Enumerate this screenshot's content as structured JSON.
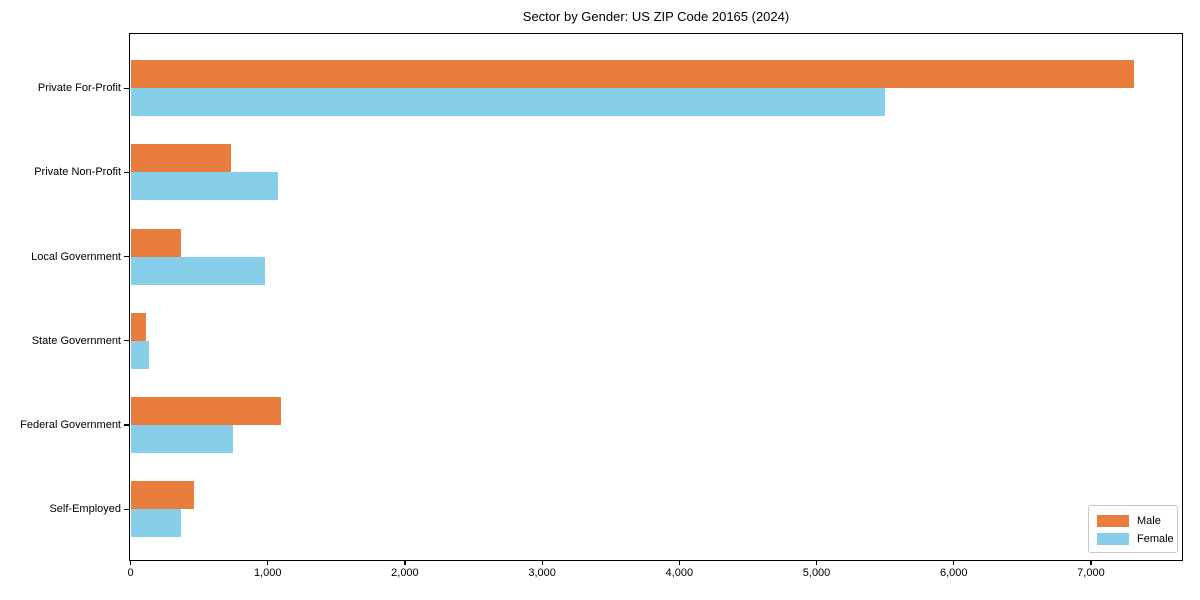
{
  "colors": {
    "male": "#e87d3e",
    "female": "#87ceeb",
    "axis": "#000000",
    "text": "#000000",
    "legend_border": "#c8c8c8",
    "background": "#ffffff"
  },
  "legend": {
    "items": [
      {
        "label": "Male",
        "key": "male"
      },
      {
        "label": "Female",
        "key": "female"
      }
    ]
  },
  "chart_data": {
    "type": "bar",
    "orientation": "horizontal",
    "title": "Sector by Gender: US ZIP Code 20165 (2024)",
    "categories": [
      "Private For-Profit",
      "Private Non-Profit",
      "Local Government",
      "State Government",
      "Federal Government",
      "Self-Employed"
    ],
    "series": [
      {
        "name": "Male",
        "color_key": "male",
        "values": [
          7315,
          730,
          370,
          115,
          1100,
          465
        ]
      },
      {
        "name": "Female",
        "color_key": "female",
        "values": [
          5500,
          1075,
          980,
          135,
          745,
          365
        ]
      }
    ],
    "xlabel": "",
    "ylabel": "",
    "xlim": [
      0,
      7660
    ],
    "x_ticks": [
      0,
      1000,
      2000,
      3000,
      4000,
      5000,
      6000,
      7000
    ],
    "x_tick_labels": [
      "0",
      "1,000",
      "2,000",
      "3,000",
      "4,000",
      "5,000",
      "6,000",
      "7,000"
    ],
    "grid": false,
    "legend_position": "lower right"
  }
}
